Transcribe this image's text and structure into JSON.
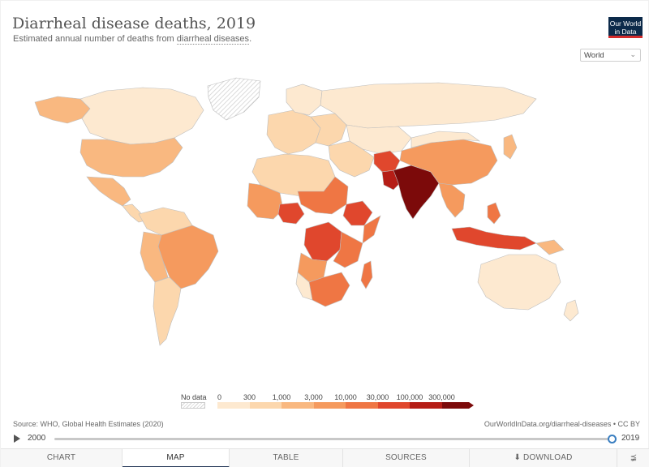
{
  "header": {
    "title": "Diarrheal disease deaths, 2019",
    "subtitle_prefix": "Estimated annual number of deaths from ",
    "subtitle_link": "diarrheal diseases",
    "subtitle_suffix": "."
  },
  "logo": {
    "line1": "Our World",
    "line2": "in Data"
  },
  "region_select": {
    "value": "World",
    "chevron": "chevron-down-icon"
  },
  "legend": {
    "nodata_label": "No data",
    "ticks": [
      "0",
      "300",
      "1,000",
      "3,000",
      "10,000",
      "30,000",
      "100,000",
      "300,000"
    ],
    "colors": [
      "#fde9d0",
      "#fcd7ad",
      "#f9b880",
      "#f59a5e",
      "#ef7644",
      "#e0472d",
      "#b51d16",
      "#7c0a0a"
    ]
  },
  "colors": {
    "ocean": "#ffffff",
    "land_border": "#c8c8c8",
    "nodata": "#e2e2e2"
  },
  "footer": {
    "source": "Source: WHO, Global Health Estimates (2020)",
    "url": "OurWorldInData.org/diarrheal-diseases • CC BY"
  },
  "timeline": {
    "start": "2000",
    "end": "2019"
  },
  "tabs": {
    "chart": "CHART",
    "map": "MAP",
    "table": "TABLE",
    "sources": "SOURCES",
    "download": "DOWNLOAD"
  }
}
